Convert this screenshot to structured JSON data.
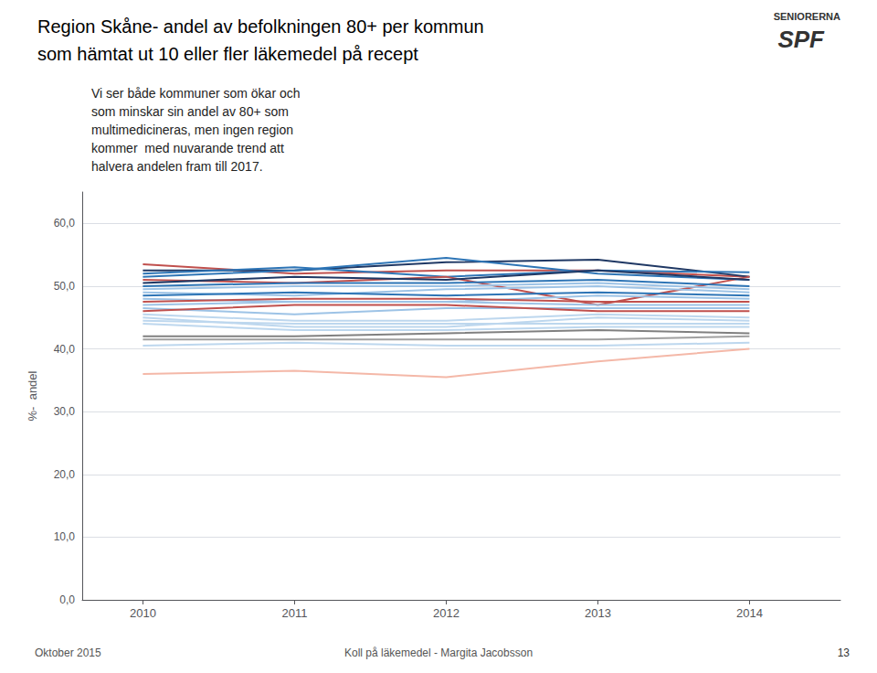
{
  "chart_data": {
    "type": "line",
    "title": "Region Skåne- andel av befolkningen 80+ per kommun",
    "subtitle": "som hämtat ut 10 eller fler läkemedel på recept",
    "ylabel": "%-  andel",
    "annotations": [
      "Vi ser både kommuner som ökar och\nsom minskar sin andel av 80+ som\nmultimedicineras, men ingen region\nkommer  med nuvarande trend att\nhalvera andelen fram till 2017.",
      "Oktober 2015",
      "Koll på läkemedel - Margita Jacobsson",
      "13",
      "SENIORERNA",
      "SPF"
    ],
    "x": [
      2010,
      2011,
      2012,
      2013,
      2014
    ],
    "xlim": [
      2009.6,
      2014.6
    ],
    "xticks": [
      2010,
      2011,
      2012,
      2013,
      2014
    ],
    "ylim": [
      0,
      65
    ],
    "yticks": [
      {
        "value": 0,
        "label": "0,0"
      },
      {
        "value": 10,
        "label": "10,0"
      },
      {
        "value": 20,
        "label": "20,0"
      },
      {
        "value": 30,
        "label": "30,0"
      },
      {
        "value": 40,
        "label": "40,0"
      },
      {
        "value": 50,
        "label": "50,0"
      },
      {
        "value": 60,
        "label": "60,0"
      }
    ],
    "grid": "y",
    "series": [
      {
        "color": "#C0504D",
        "values": [
          53.5,
          52.0,
          52.5,
          52.5,
          51.5
        ]
      },
      {
        "color": "#1F3864",
        "values": [
          52.5,
          52.5,
          53.8,
          54.2,
          51.5
        ]
      },
      {
        "color": "#2E75B6",
        "values": [
          51.5,
          52.5,
          54.5,
          52.0,
          51.0
        ]
      },
      {
        "color": "#2E75B6",
        "values": [
          52.0,
          53.0,
          51.5,
          52.5,
          52.2
        ]
      },
      {
        "color": "#C0504D",
        "values": [
          51.0,
          50.5,
          51.5,
          47.0,
          51.5
        ]
      },
      {
        "color": "#1F3864",
        "values": [
          50.5,
          51.5,
          51.0,
          52.5,
          51.0
        ]
      },
      {
        "color": "#2E75B6",
        "values": [
          50.0,
          50.5,
          50.5,
          51.0,
          50.0
        ]
      },
      {
        "color": "#9DC3E6",
        "values": [
          49.5,
          50.0,
          50.0,
          50.5,
          49.5
        ]
      },
      {
        "color": "#9DC3E6",
        "values": [
          49.0,
          48.5,
          49.5,
          50.0,
          49.0
        ]
      },
      {
        "color": "#2E75B6",
        "values": [
          48.5,
          49.0,
          48.5,
          49.0,
          48.5
        ]
      },
      {
        "color": "#9DC3E6",
        "values": [
          48.0,
          47.5,
          47.5,
          48.5,
          48.0
        ]
      },
      {
        "color": "#C0504D",
        "values": [
          47.5,
          48.0,
          48.0,
          47.5,
          47.5
        ]
      },
      {
        "color": "#9DC3E6",
        "values": [
          47.0,
          47.5,
          47.5,
          47.0,
          47.0
        ]
      },
      {
        "color": "#9DC3E6",
        "values": [
          46.5,
          45.5,
          46.5,
          46.5,
          46.5
        ]
      },
      {
        "color": "#C0504D",
        "values": [
          46.0,
          47.0,
          47.0,
          46.0,
          46.0
        ]
      },
      {
        "color": "#BDD7EE",
        "values": [
          45.5,
          44.5,
          44.5,
          45.5,
          45.0
        ]
      },
      {
        "color": "#BDD7EE",
        "values": [
          45.0,
          43.5,
          43.5,
          45.0,
          44.5
        ]
      },
      {
        "color": "#BDD7EE",
        "values": [
          44.5,
          44.0,
          44.0,
          44.0,
          44.0
        ]
      },
      {
        "color": "#BDD7EE",
        "values": [
          44.0,
          43.0,
          43.0,
          43.5,
          43.5
        ]
      },
      {
        "color": "#808080",
        "values": [
          42.0,
          42.0,
          42.5,
          43.0,
          42.5
        ]
      },
      {
        "color": "#A0A0A0",
        "values": [
          41.5,
          41.5,
          41.5,
          41.5,
          42.0
        ]
      },
      {
        "color": "#BDD7EE",
        "values": [
          40.5,
          41.0,
          40.5,
          40.5,
          41.0
        ]
      },
      {
        "color": "#F4B8A8",
        "values": [
          36.0,
          36.5,
          35.5,
          38.0,
          40.0
        ]
      }
    ]
  }
}
